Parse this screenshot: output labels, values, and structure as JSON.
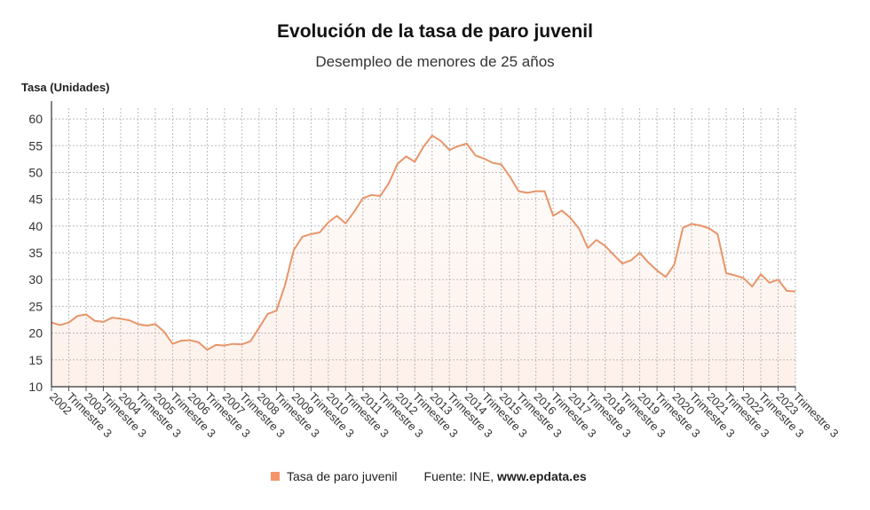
{
  "chart_data": {
    "type": "area",
    "title": "Evolución de la tasa de paro juvenil",
    "subtitle": "Desempleo de menores de 25 años",
    "ylabel": "Tasa (Unidades)",
    "ylim": [
      10,
      62
    ],
    "yticks": [
      10,
      15,
      20,
      25,
      30,
      35,
      40,
      45,
      50,
      55,
      60
    ],
    "grid": true,
    "legend_position": "bottom",
    "x_tick_labels": [
      "2002",
      "Trimestre 3",
      "2003",
      "Trimestre 3",
      "2004",
      "Trimestre 3",
      "2005",
      "Trimestre 3",
      "2006",
      "Trimestre 3",
      "2007",
      "Trimestre 3",
      "2008",
      "Trimestre 3",
      "2009",
      "Trimestre 3",
      "2010",
      "Trimestre 3",
      "2011",
      "Trimestre 3",
      "2012",
      "Trimestre 3",
      "2013",
      "Trimestre 3",
      "2014",
      "Trimestre 3",
      "2015",
      "Trimestre 3",
      "2016",
      "Trimestre 3",
      "2017",
      "Trimestre 3",
      "2018",
      "Trimestre 3",
      "2019",
      "Trimestre 3",
      "2020",
      "Trimestre 3",
      "2021",
      "Trimestre 3",
      "2022",
      "Trimestre 3",
      "2023",
      "Trimestre 3"
    ],
    "series": [
      {
        "name": "Tasa de paro juvenil",
        "color": "#e8956a",
        "values": [
          22.0,
          21.5,
          22.0,
          23.2,
          23.5,
          22.3,
          22.1,
          22.9,
          22.7,
          22.4,
          21.7,
          21.4,
          21.7,
          20.3,
          18.0,
          18.6,
          18.7,
          18.3,
          16.9,
          17.8,
          17.7,
          18.0,
          17.9,
          18.5,
          21.0,
          23.6,
          24.2,
          29.0,
          35.5,
          38.0,
          38.5,
          38.8,
          40.7,
          41.9,
          40.5,
          42.7,
          45.2,
          45.8,
          45.6,
          48.0,
          51.6,
          53.0,
          52.0,
          54.8,
          56.9,
          55.9,
          54.2,
          54.9,
          55.4,
          53.2,
          52.6,
          51.8,
          51.5,
          49.2,
          46.5,
          46.2,
          46.5,
          46.5,
          41.9,
          42.9,
          41.5,
          39.5,
          35.9,
          37.4,
          36.3,
          34.6,
          33.0,
          33.6,
          35.0,
          33.2,
          31.7,
          30.5,
          32.8,
          39.7,
          40.4,
          40.1,
          39.6,
          38.5,
          31.2,
          30.8,
          30.3,
          28.7,
          31.0,
          29.4,
          30.0,
          27.9,
          27.8
        ]
      }
    ]
  },
  "legend": {
    "label": "Tasa de paro juvenil"
  },
  "source": {
    "prefix": "Fuente: INE, ",
    "site": "www.epdata.es"
  }
}
